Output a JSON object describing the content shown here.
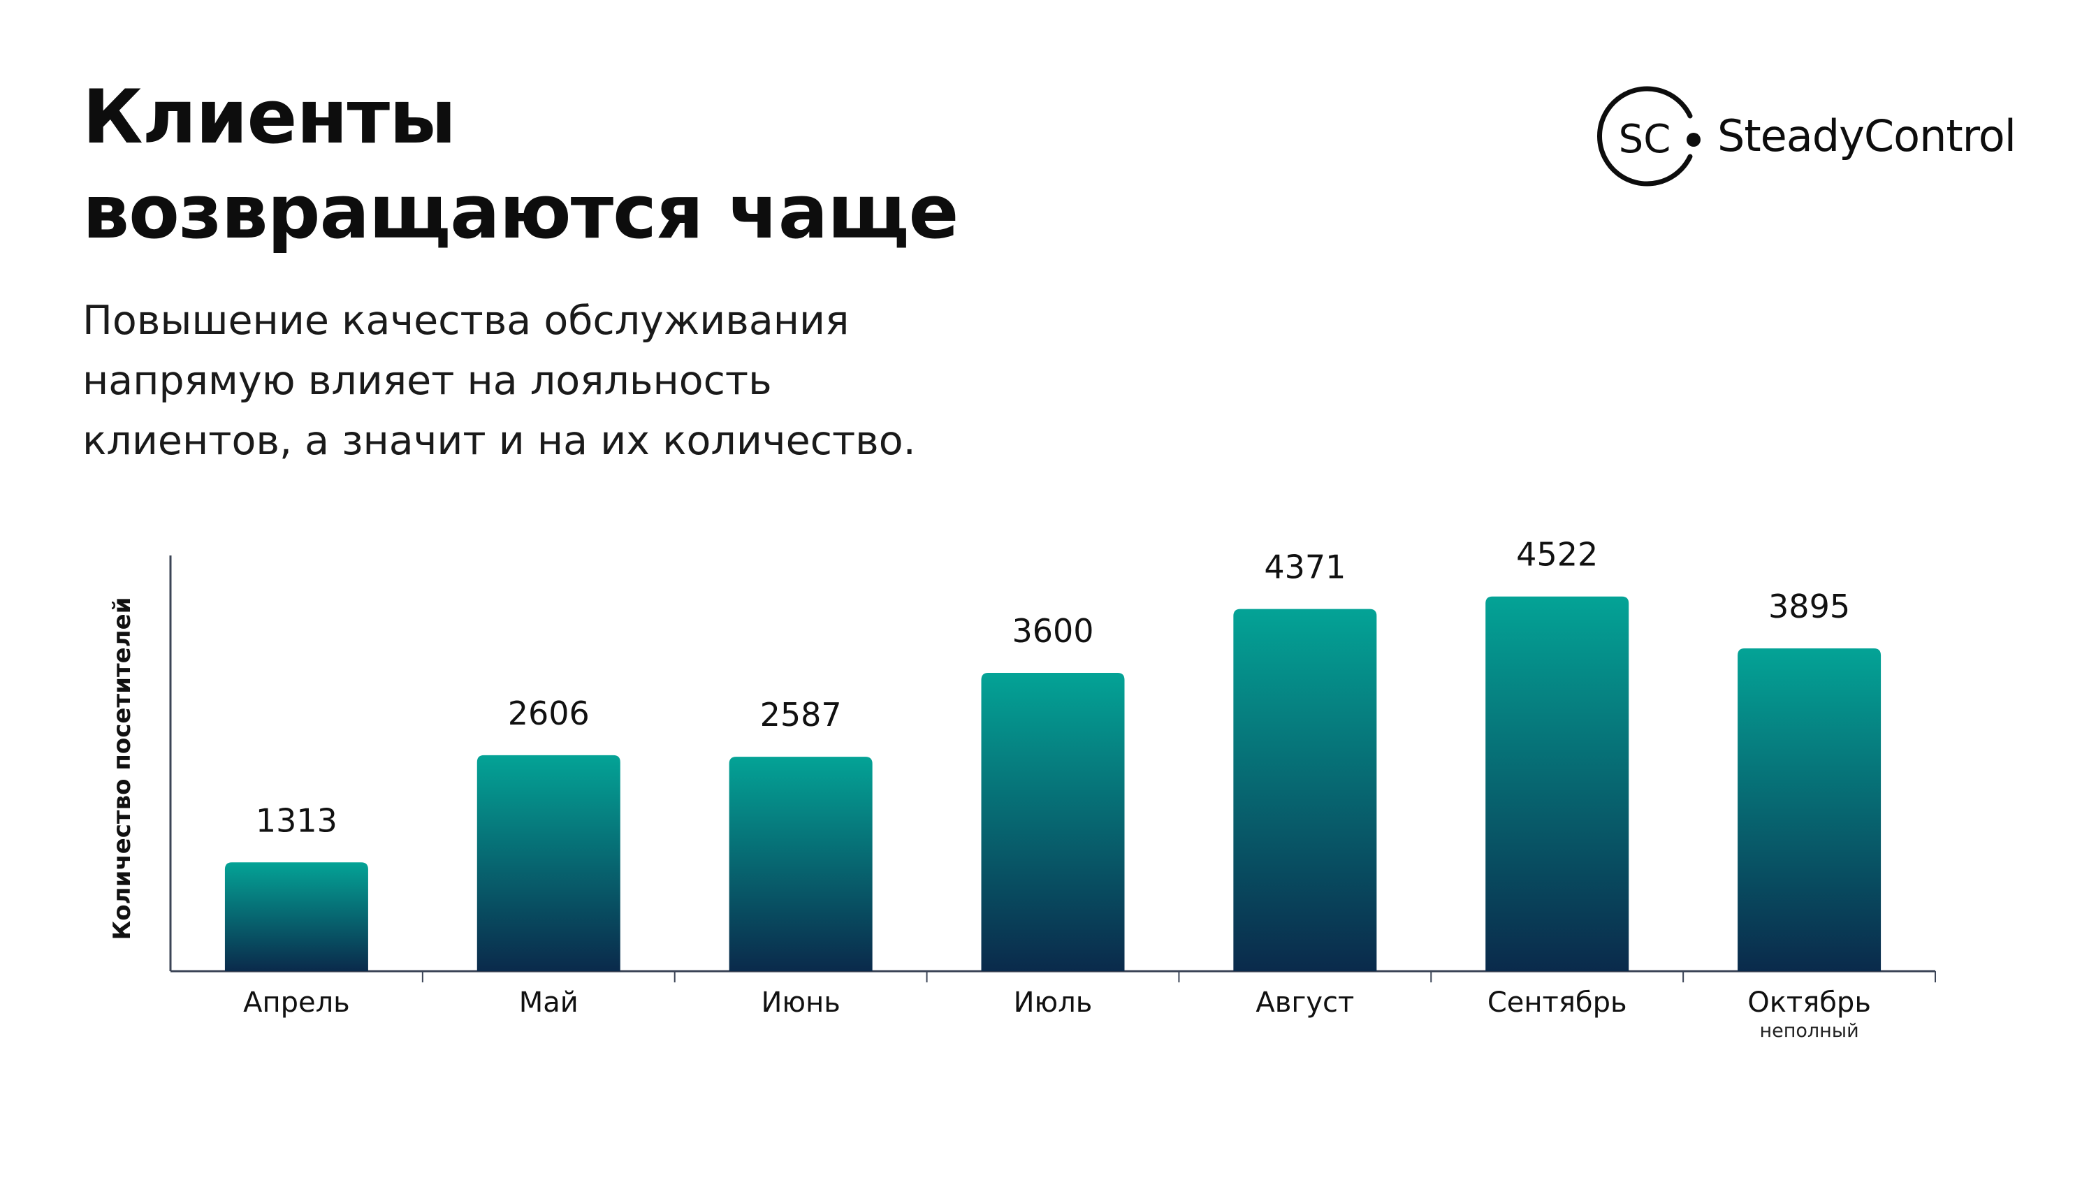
{
  "header": {
    "title_lines": [
      "Клиенты",
      "возвращаются чаще"
    ],
    "subtitle_lines": [
      "Повышение качества обслуживания",
      "напрямую влияет на лояльность",
      "клиентов, а значит и на их количество."
    ]
  },
  "logo": {
    "mark": "SC",
    "wordmark": "SteadyControl"
  },
  "colors": {
    "bar_top": "#04a396",
    "bar_bottom": "#0a2a4b",
    "axis": "#3b4456",
    "text": "#111111"
  },
  "chart_data": {
    "type": "bar",
    "ylabel": "Количество посетителей",
    "categories": [
      "Апрель",
      "Май",
      "Июнь",
      "Июль",
      "Август",
      "Сентябрь",
      "Октябрь"
    ],
    "category_notes": [
      "",
      "",
      "",
      "",
      "",
      "",
      "неполный"
    ],
    "values": [
      1313,
      2606,
      2587,
      3600,
      4371,
      4522,
      3895
    ],
    "ylim": [
      0,
      5000
    ],
    "grid": false,
    "data_labels": true
  }
}
